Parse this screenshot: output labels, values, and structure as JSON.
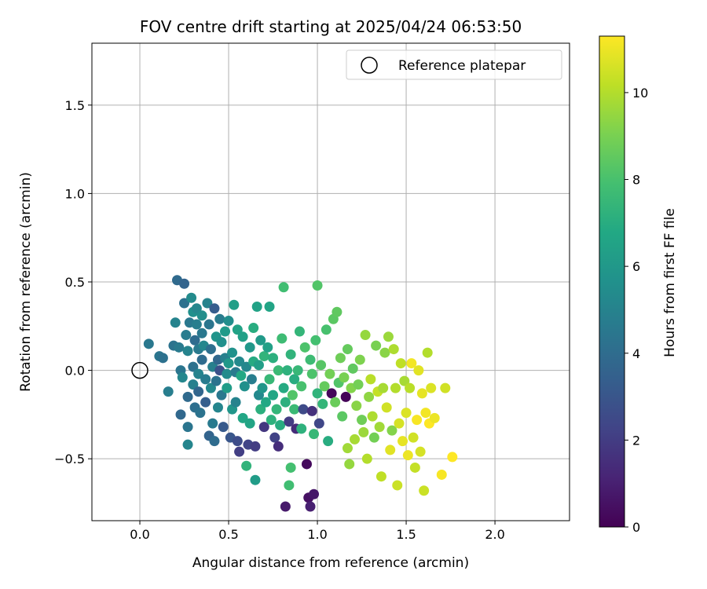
{
  "chart_data": {
    "type": "scatter",
    "title": "FOV centre drift starting at 2025/04/24 06:53:50",
    "xlabel": "Angular distance from reference (arcmin)",
    "ylabel": "Rotation from reference (arcmin)",
    "xlim": [
      -0.27,
      2.42
    ],
    "ylim": [
      -0.85,
      1.85
    ],
    "xticks": [
      {
        "v": 0.0,
        "label": "0.0"
      },
      {
        "v": 0.5,
        "label": "0.5"
      },
      {
        "v": 1.0,
        "label": "1.0"
      },
      {
        "v": 1.5,
        "label": "1.5"
      },
      {
        "v": 2.0,
        "label": "2.0"
      }
    ],
    "yticks": [
      {
        "v": -0.5,
        "label": "−0.5"
      },
      {
        "v": 0.0,
        "label": "0.0"
      },
      {
        "v": 0.5,
        "label": "0.5"
      },
      {
        "v": 1.0,
        "label": "1.0"
      },
      {
        "v": 1.5,
        "label": "1.5"
      }
    ],
    "grid": true,
    "legend": {
      "position": "top-right",
      "label": "Reference platepar"
    },
    "reference": {
      "x": 0.0,
      "y": 0.0
    },
    "colorbar": {
      "label": "Hours from first FF file",
      "min": 0,
      "max": 11.3,
      "ticks": [
        {
          "v": 0,
          "label": "0"
        },
        {
          "v": 2,
          "label": "2"
        },
        {
          "v": 4,
          "label": "4"
        },
        {
          "v": 6,
          "label": "6"
        },
        {
          "v": 8,
          "label": "8"
        },
        {
          "v": 10,
          "label": "10"
        }
      ],
      "colormap": "viridis"
    },
    "points": [
      [
        0.05,
        0.15,
        4.5
      ],
      [
        0.11,
        0.08,
        4.4
      ],
      [
        0.13,
        0.07,
        4.2
      ],
      [
        0.16,
        -0.12,
        4.8
      ],
      [
        0.19,
        0.14,
        4.3
      ],
      [
        0.2,
        0.27,
        5.0
      ],
      [
        0.21,
        0.51,
        3.9
      ],
      [
        0.22,
        0.13,
        4.6
      ],
      [
        0.23,
        0.0,
        4.4
      ],
      [
        0.24,
        -0.04,
        5.2
      ],
      [
        0.23,
        -0.25,
        3.8
      ],
      [
        0.25,
        0.38,
        4.2
      ],
      [
        0.25,
        0.49,
        3.6
      ],
      [
        0.26,
        0.2,
        4.7
      ],
      [
        0.27,
        0.11,
        5.0
      ],
      [
        0.27,
        -0.15,
        3.9
      ],
      [
        0.27,
        -0.32,
        4.4
      ],
      [
        0.27,
        -0.42,
        5.1
      ],
      [
        0.28,
        0.27,
        4.5
      ],
      [
        0.29,
        0.41,
        5.4
      ],
      [
        0.3,
        0.33,
        5.6
      ],
      [
        0.3,
        0.02,
        4.2
      ],
      [
        0.3,
        -0.08,
        4.9
      ],
      [
        0.31,
        -0.21,
        4.1
      ],
      [
        0.31,
        0.17,
        4.0
      ],
      [
        0.32,
        0.35,
        5.2
      ],
      [
        0.32,
        0.26,
        4.8
      ],
      [
        0.33,
        0.12,
        4.6
      ],
      [
        0.33,
        -0.02,
        5.0
      ],
      [
        0.33,
        -0.12,
        3.7
      ],
      [
        0.34,
        -0.24,
        4.3
      ],
      [
        0.35,
        0.31,
        5.5
      ],
      [
        0.35,
        0.21,
        4.5
      ],
      [
        0.35,
        0.06,
        4.0
      ],
      [
        0.36,
        0.14,
        5.2
      ],
      [
        0.37,
        -0.05,
        4.7
      ],
      [
        0.37,
        -0.18,
        3.4
      ],
      [
        0.38,
        0.38,
        5.0
      ],
      [
        0.39,
        0.26,
        4.4
      ],
      [
        0.39,
        -0.37,
        3.6
      ],
      [
        0.4,
        0.12,
        4.1
      ],
      [
        0.4,
        -0.1,
        5.3
      ],
      [
        0.41,
        0.02,
        4.9
      ],
      [
        0.41,
        -0.3,
        4.6
      ],
      [
        0.42,
        0.35,
        3.3
      ],
      [
        0.42,
        -0.4,
        4.0
      ],
      [
        0.43,
        0.19,
        5.8
      ],
      [
        0.43,
        -0.06,
        4.3
      ],
      [
        0.44,
        0.06,
        3.8
      ],
      [
        0.44,
        -0.21,
        5.1
      ],
      [
        0.45,
        0.29,
        4.7
      ],
      [
        0.45,
        0.0,
        2.8
      ],
      [
        0.46,
        -0.14,
        4.5
      ],
      [
        0.46,
        0.16,
        5.6
      ],
      [
        0.47,
        -0.32,
        3.2
      ],
      [
        0.48,
        0.07,
        4.9
      ],
      [
        0.48,
        0.22,
        6.1
      ],
      [
        0.49,
        -0.02,
        5.4
      ],
      [
        0.49,
        -0.1,
        6.2
      ],
      [
        0.5,
        0.28,
        5.5
      ],
      [
        0.5,
        0.04,
        6.0
      ],
      [
        0.51,
        -0.38,
        3.0
      ],
      [
        0.52,
        0.1,
        5.7
      ],
      [
        0.52,
        -0.22,
        5.9
      ],
      [
        0.53,
        0.37,
        6.3
      ],
      [
        0.54,
        -0.01,
        4.6
      ],
      [
        0.54,
        -0.18,
        5.0
      ],
      [
        0.55,
        -0.4,
        2.6
      ],
      [
        0.55,
        0.23,
        6.5
      ],
      [
        0.56,
        -0.46,
        2.1
      ],
      [
        0.56,
        0.05,
        5.3
      ],
      [
        0.57,
        -0.03,
        6.8
      ],
      [
        0.58,
        -0.27,
        6.7
      ],
      [
        0.58,
        0.19,
        6.4
      ],
      [
        0.59,
        -0.09,
        5.6
      ],
      [
        0.6,
        0.02,
        5.2
      ],
      [
        0.6,
        -0.54,
        7.3
      ],
      [
        0.61,
        -0.42,
        2.3
      ],
      [
        0.62,
        0.13,
        6.0
      ],
      [
        0.62,
        -0.3,
        6.6
      ],
      [
        0.63,
        -0.05,
        4.8
      ],
      [
        0.64,
        0.05,
        6.9
      ],
      [
        0.64,
        0.24,
        7.0
      ],
      [
        0.65,
        -0.43,
        2.0
      ],
      [
        0.65,
        -0.62,
        6.2
      ],
      [
        0.66,
        0.36,
        6.5
      ],
      [
        0.67,
        -0.14,
        5.3
      ],
      [
        0.67,
        0.03,
        6.3
      ],
      [
        0.68,
        -0.22,
        7.1
      ],
      [
        0.68,
        0.17,
        6.1
      ],
      [
        0.69,
        -0.1,
        5.9
      ],
      [
        0.7,
        0.08,
        7.3
      ],
      [
        0.7,
        -0.32,
        1.8
      ],
      [
        0.71,
        -0.18,
        6.8
      ],
      [
        0.72,
        0.13,
        6.4
      ],
      [
        0.73,
        -0.05,
        7.5
      ],
      [
        0.73,
        0.36,
        6.6
      ],
      [
        0.74,
        -0.28,
        7.2
      ],
      [
        0.75,
        0.07,
        7.1
      ],
      [
        0.75,
        -0.14,
        6.7
      ],
      [
        0.76,
        -0.38,
        2.2
      ],
      [
        0.77,
        -0.22,
        7.4
      ],
      [
        0.78,
        -0.43,
        1.5
      ],
      [
        0.78,
        0.0,
        7.6
      ],
      [
        0.79,
        -0.31,
        7.0
      ],
      [
        0.8,
        0.18,
        7.7
      ],
      [
        0.81,
        -0.1,
        6.9
      ],
      [
        0.81,
        0.47,
        7.8
      ],
      [
        0.82,
        -0.77,
        0.8
      ],
      [
        0.82,
        -0.18,
        7.1
      ],
      [
        0.83,
        0.0,
        7.2
      ],
      [
        0.84,
        -0.65,
        7.8
      ],
      [
        0.84,
        -0.29,
        2.0
      ],
      [
        0.85,
        -0.55,
        7.9
      ],
      [
        0.85,
        0.09,
        7.3
      ],
      [
        0.86,
        -0.14,
        8.2
      ],
      [
        0.87,
        -0.05,
        7.0
      ],
      [
        0.87,
        -0.22,
        7.6
      ],
      [
        0.88,
        -0.33,
        1.4
      ],
      [
        0.89,
        0.0,
        7.5
      ],
      [
        0.9,
        0.22,
        7.4
      ],
      [
        0.91,
        -0.33,
        7.2
      ],
      [
        0.91,
        -0.09,
        8.0
      ],
      [
        0.92,
        -0.22,
        2.5
      ],
      [
        0.93,
        0.13,
        8.1
      ],
      [
        0.94,
        -0.53,
        0.3
      ],
      [
        0.95,
        -0.72,
        0.5
      ],
      [
        0.96,
        0.06,
        7.7
      ],
      [
        0.96,
        -0.77,
        1.0
      ],
      [
        0.97,
        -0.02,
        8.1
      ],
      [
        0.97,
        -0.23,
        1.6
      ],
      [
        0.98,
        -0.36,
        7.5
      ],
      [
        0.98,
        -0.7,
        0.7
      ],
      [
        0.99,
        0.17,
        7.9
      ],
      [
        1.0,
        0.48,
        8.2
      ],
      [
        1.0,
        -0.13,
        7.3
      ],
      [
        1.01,
        -0.3,
        2.4
      ],
      [
        1.02,
        0.03,
        8.3
      ],
      [
        1.03,
        -0.19,
        7.4
      ],
      [
        1.04,
        -0.09,
        8.6
      ],
      [
        1.05,
        0.23,
        8.0
      ],
      [
        1.06,
        -0.4,
        7.0
      ],
      [
        1.07,
        -0.02,
        8.9
      ],
      [
        1.08,
        -0.13,
        0.2
      ],
      [
        1.09,
        0.29,
        8.4
      ],
      [
        1.1,
        -0.18,
        8.7
      ],
      [
        1.11,
        0.33,
        8.5
      ],
      [
        1.12,
        -0.07,
        8.2
      ],
      [
        1.13,
        0.07,
        8.8
      ],
      [
        1.14,
        -0.26,
        8.4
      ],
      [
        1.15,
        -0.04,
        9.0
      ],
      [
        1.16,
        -0.15,
        0.1
      ],
      [
        1.17,
        0.12,
        8.6
      ],
      [
        1.17,
        -0.44,
        9.7
      ],
      [
        1.18,
        -0.53,
        9.5
      ],
      [
        1.19,
        -0.1,
        9.2
      ],
      [
        1.2,
        0.01,
        8.5
      ],
      [
        1.21,
        -0.39,
        9.8
      ],
      [
        1.22,
        -0.2,
        9.3
      ],
      [
        1.23,
        -0.08,
        8.9
      ],
      [
        1.24,
        0.06,
        9.1
      ],
      [
        1.25,
        -0.28,
        8.8
      ],
      [
        1.26,
        -0.35,
        9.6
      ],
      [
        1.27,
        0.2,
        9.5
      ],
      [
        1.28,
        -0.5,
        10.0
      ],
      [
        1.29,
        -0.15,
        9.4
      ],
      [
        1.3,
        -0.05,
        10.1
      ],
      [
        1.31,
        -0.26,
        9.9
      ],
      [
        1.32,
        -0.38,
        8.9
      ],
      [
        1.33,
        0.14,
        9.0
      ],
      [
        1.34,
        -0.12,
        10.3
      ],
      [
        1.35,
        -0.32,
        9.7
      ],
      [
        1.36,
        -0.6,
        10.2
      ],
      [
        1.37,
        -0.1,
        9.8
      ],
      [
        1.38,
        0.1,
        9.3
      ],
      [
        1.39,
        -0.21,
        10.5
      ],
      [
        1.4,
        0.19,
        9.6
      ],
      [
        1.41,
        -0.45,
        10.8
      ],
      [
        1.42,
        -0.34,
        9.2
      ],
      [
        1.43,
        0.12,
        9.9
      ],
      [
        1.44,
        -0.1,
        10.0
      ],
      [
        1.45,
        -0.65,
        10.4
      ],
      [
        1.46,
        -0.3,
        10.6
      ],
      [
        1.47,
        0.04,
        10.2
      ],
      [
        1.48,
        -0.4,
        10.9
      ],
      [
        1.49,
        -0.06,
        9.8
      ],
      [
        1.5,
        -0.24,
        10.7
      ],
      [
        1.51,
        -0.48,
        11.0
      ],
      [
        1.52,
        -0.1,
        10.1
      ],
      [
        1.53,
        0.04,
        11.1
      ],
      [
        1.54,
        -0.38,
        10.5
      ],
      [
        1.55,
        -0.55,
        10.3
      ],
      [
        1.56,
        -0.28,
        11.2
      ],
      [
        1.57,
        0.0,
        10.8
      ],
      [
        1.58,
        -0.46,
        10.6
      ],
      [
        1.59,
        -0.13,
        10.9
      ],
      [
        1.6,
        -0.68,
        10.4
      ],
      [
        1.61,
        -0.24,
        11.1
      ],
      [
        1.62,
        0.1,
        10.0
      ],
      [
        1.63,
        -0.3,
        11.3
      ],
      [
        1.64,
        -0.1,
        10.7
      ],
      [
        1.66,
        -0.27,
        11.0
      ],
      [
        1.7,
        -0.59,
        11.2
      ],
      [
        1.72,
        -0.1,
        10.5
      ],
      [
        1.76,
        -0.49,
        11.3
      ]
    ]
  }
}
